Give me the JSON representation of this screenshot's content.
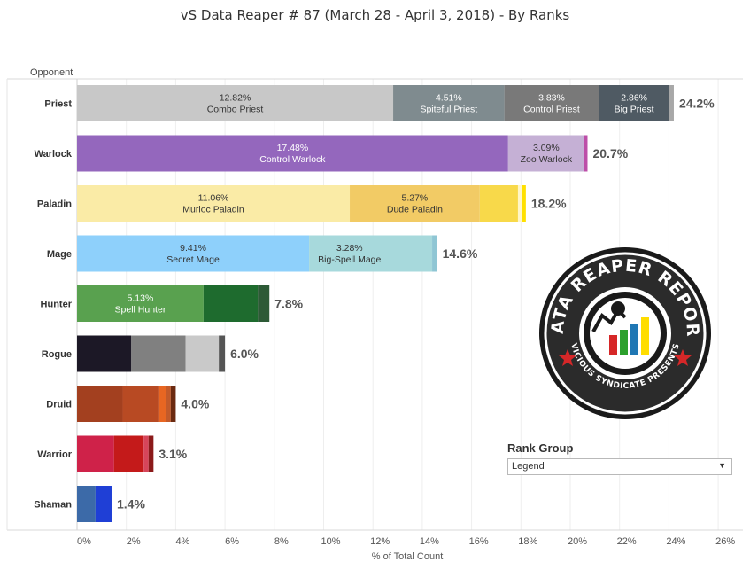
{
  "title": "vS Data Reaper #  87 (March 28 - April 3, 2018) - By Ranks",
  "rank_group": {
    "label": "Rank Group",
    "selected": "Legend",
    "arrow_icon": "dropdown-arrow-icon"
  },
  "logo": {
    "top_text": "DATA REAPER REPORT",
    "bottom_text": "VICIOUS SYNDICATE PRESENTS"
  },
  "chart_data": {
    "type": "bar",
    "orientation": "horizontal",
    "stacked": true,
    "row_header": "Opponent",
    "xlabel": "% of Total Count",
    "xlim": [
      0,
      26
    ],
    "xticks": [
      "0%",
      "2%",
      "4%",
      "6%",
      "8%",
      "10%",
      "12%",
      "14%",
      "16%",
      "18%",
      "20%",
      "22%",
      "24%",
      "26%"
    ],
    "grid": true,
    "categories": [
      "Priest",
      "Warlock",
      "Paladin",
      "Mage",
      "Hunter",
      "Rogue",
      "Druid",
      "Warrior",
      "Shaman"
    ],
    "totals": [
      "24.2%",
      "20.7%",
      "18.2%",
      "14.6%",
      "7.8%",
      "6.0%",
      "4.0%",
      "3.1%",
      "1.4%"
    ],
    "rows": [
      {
        "segments": [
          {
            "value": 12.82,
            "pct": "12.82%",
            "label": "Combo Priest",
            "color": "#c8c8c8",
            "text_color": "#333333"
          },
          {
            "value": 4.51,
            "pct": "4.51%",
            "label": "Spiteful Priest",
            "color": "#7f8b8f",
            "text_color": "#ffffff"
          },
          {
            "value": 3.83,
            "pct": "3.83%",
            "label": "Control Priest",
            "color": "#797979",
            "text_color": "#ffffff"
          },
          {
            "value": 2.86,
            "pct": "2.86%",
            "label": "Big Priest",
            "color": "#4f5a63",
            "text_color": "#ffffff"
          },
          {
            "value": 0.18,
            "color": "#a8a8a8"
          }
        ]
      },
      {
        "segments": [
          {
            "value": 17.48,
            "pct": "17.48%",
            "label": "Control Warlock",
            "color": "#9467bd",
            "text_color": "#ffffff"
          },
          {
            "value": 3.09,
            "pct": "3.09%",
            "label": "Zoo Warlock",
            "color": "#c5b0d5",
            "text_color": "#333333"
          },
          {
            "value": 0.13,
            "color": "#bd4fa8"
          }
        ]
      },
      {
        "segments": [
          {
            "value": 11.06,
            "pct": "11.06%",
            "label": "Murloc Paladin",
            "color": "#faeba6",
            "text_color": "#333333"
          },
          {
            "value": 5.27,
            "pct": "5.27%",
            "label": "Dude Paladin",
            "color": "#f2cb65",
            "text_color": "#333333"
          },
          {
            "value": 1.55,
            "color": "#f8d94a"
          },
          {
            "value": 0.15,
            "color": "#fff6c8"
          },
          {
            "value": 0.17,
            "color": "#ffe000"
          }
        ]
      },
      {
        "segments": [
          {
            "value": 9.41,
            "pct": "9.41%",
            "label": "Secret Mage",
            "color": "#8ed0fb",
            "text_color": "#333333"
          },
          {
            "value": 3.28,
            "pct": "3.28%",
            "label": "Big-Spell Mage",
            "color": "#a7d9dc",
            "text_color": "#333333"
          },
          {
            "value": 1.71,
            "color": "#a7d9dc"
          },
          {
            "value": 0.2,
            "color": "#8fc6d4"
          }
        ]
      },
      {
        "segments": [
          {
            "value": 5.13,
            "pct": "5.13%",
            "label": "Spell Hunter",
            "color": "#59a14f",
            "text_color": "#ffffff"
          },
          {
            "value": 2.2,
            "color": "#1e6b2e"
          },
          {
            "value": 0.47,
            "color": "#2d5a36"
          }
        ]
      },
      {
        "segments": [
          {
            "value": 2.2,
            "color": "#1c1826"
          },
          {
            "value": 2.2,
            "color": "#808080"
          },
          {
            "value": 1.35,
            "color": "#c9c9c9"
          },
          {
            "value": 0.25,
            "color": "#555555"
          }
        ]
      },
      {
        "segments": [
          {
            "value": 1.85,
            "color": "#a3401f"
          },
          {
            "value": 1.45,
            "color": "#b84a23"
          },
          {
            "value": 0.3,
            "color": "#e86622"
          },
          {
            "value": 0.2,
            "color": "#c35a2a"
          },
          {
            "value": 0.2,
            "color": "#6b2a10"
          }
        ]
      },
      {
        "segments": [
          {
            "value": 1.5,
            "color": "#cf2249"
          },
          {
            "value": 1.2,
            "color": "#c41a1a"
          },
          {
            "value": 0.2,
            "color": "#d6455a"
          },
          {
            "value": 0.2,
            "color": "#8b1a1a"
          }
        ]
      },
      {
        "segments": [
          {
            "value": 0.75,
            "color": "#3c6aa8"
          },
          {
            "value": 0.65,
            "color": "#1f3fd6"
          }
        ]
      }
    ]
  }
}
